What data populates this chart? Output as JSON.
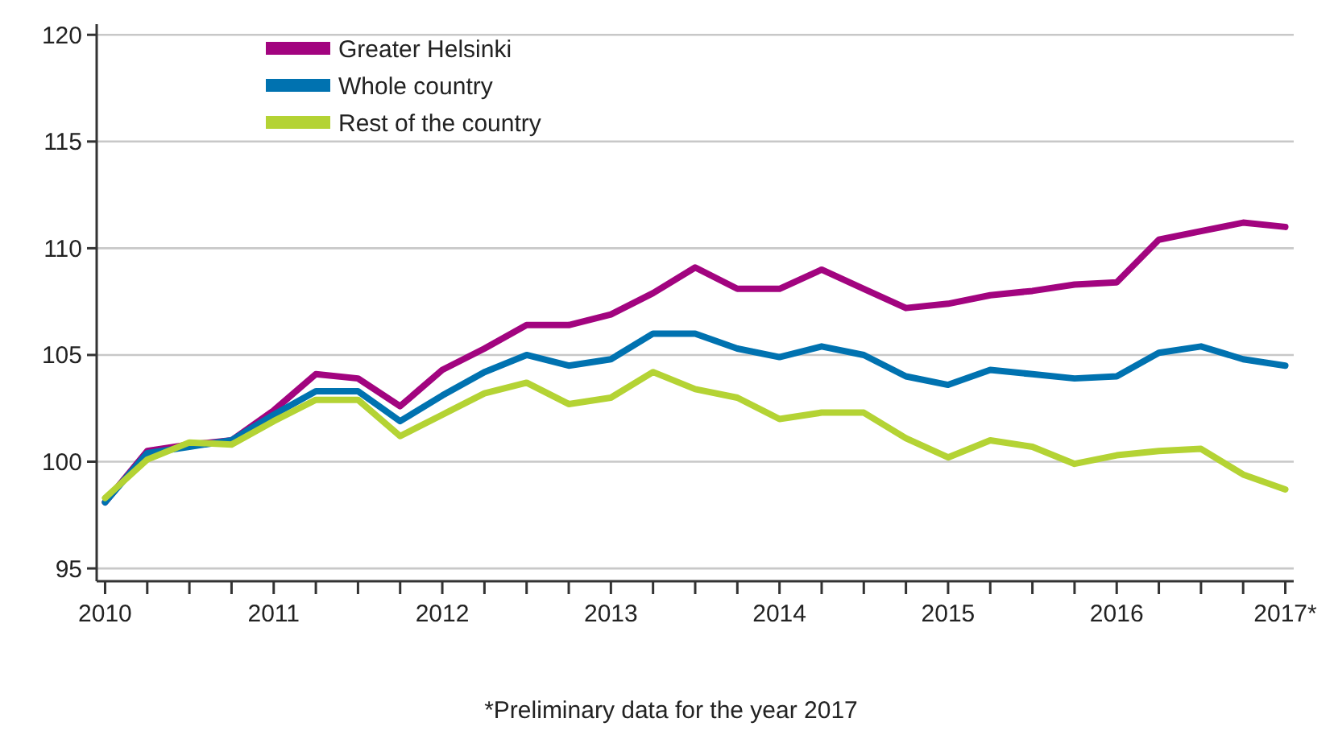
{
  "chart_data": {
    "type": "line",
    "x": [
      2010,
      2010.25,
      2010.5,
      2010.75,
      2011,
      2011.25,
      2011.5,
      2011.75,
      2012,
      2012.25,
      2012.5,
      2012.75,
      2013,
      2013.25,
      2013.5,
      2013.75,
      2014,
      2014.25,
      2014.5,
      2014.75,
      2015,
      2015.25,
      2015.5,
      2015.75,
      2016,
      2016.25,
      2016.5,
      2016.75,
      2017
    ],
    "series": [
      {
        "name": "Greater Helsinki",
        "color": "#a2047f",
        "values": [
          98.1,
          100.5,
          100.8,
          101.0,
          102.4,
          104.1,
          103.9,
          102.6,
          104.3,
          105.3,
          106.4,
          106.4,
          106.9,
          107.9,
          109.1,
          108.1,
          108.1,
          109.0,
          108.1,
          107.2,
          107.4,
          107.8,
          108.0,
          108.3,
          108.4,
          110.4,
          110.8,
          111.2,
          111.0
        ]
      },
      {
        "name": "Whole country",
        "color": "#0072b0",
        "values": [
          98.1,
          100.4,
          100.7,
          101.0,
          102.2,
          103.3,
          103.3,
          101.9,
          103.1,
          104.2,
          105.0,
          104.5,
          104.8,
          106.0,
          106.0,
          105.3,
          104.9,
          105.4,
          105.0,
          104.0,
          103.6,
          104.3,
          104.1,
          103.9,
          104.0,
          105.1,
          105.4,
          104.8,
          104.5
        ]
      },
      {
        "name": "Rest of the country",
        "color": "#b4d334",
        "values": [
          98.3,
          100.1,
          100.9,
          100.8,
          101.9,
          102.9,
          102.9,
          101.2,
          102.2,
          103.2,
          103.7,
          102.7,
          103.0,
          104.2,
          103.4,
          103.0,
          102.0,
          102.3,
          102.3,
          101.1,
          100.2,
          101.0,
          100.7,
          99.9,
          100.3,
          100.5,
          100.6,
          99.4,
          98.7
        ]
      }
    ],
    "xlim": [
      2009.95,
      2017.05
    ],
    "xticks": [
      2010,
      {
        "value": 2010.25,
        "label": null
      },
      {
        "value": 2010.5,
        "label": null
      },
      {
        "value": 2010.75,
        "label": null
      },
      2011,
      {
        "value": 2011.25,
        "label": null
      },
      {
        "value": 2011.5,
        "label": null
      },
      {
        "value": 2011.75,
        "label": null
      },
      2012,
      {
        "value": 2012.25,
        "label": null
      },
      {
        "value": 2012.5,
        "label": null
      },
      {
        "value": 2012.75,
        "label": null
      },
      2013,
      {
        "value": 2013.25,
        "label": null
      },
      {
        "value": 2013.5,
        "label": null
      },
      {
        "value": 2013.75,
        "label": null
      },
      2014,
      {
        "value": 2014.25,
        "label": null
      },
      {
        "value": 2014.5,
        "label": null
      },
      {
        "value": 2014.75,
        "label": null
      },
      2015,
      {
        "value": 2015.25,
        "label": null
      },
      {
        "value": 2015.5,
        "label": null
      },
      {
        "value": 2015.75,
        "label": null
      },
      2016,
      {
        "value": 2016.25,
        "label": null
      },
      {
        "value": 2016.5,
        "label": null
      },
      {
        "value": 2016.75,
        "label": null
      },
      {
        "value": 2017,
        "label": "2017*"
      }
    ],
    "ylim": [
      94.4,
      120.5
    ],
    "yticks": [
      95,
      100,
      105,
      110,
      115,
      120
    ],
    "grid": "y",
    "legend": "top left",
    "line_style": "solid",
    "annotations": [
      "*Preliminary data for the year 2017"
    ]
  }
}
